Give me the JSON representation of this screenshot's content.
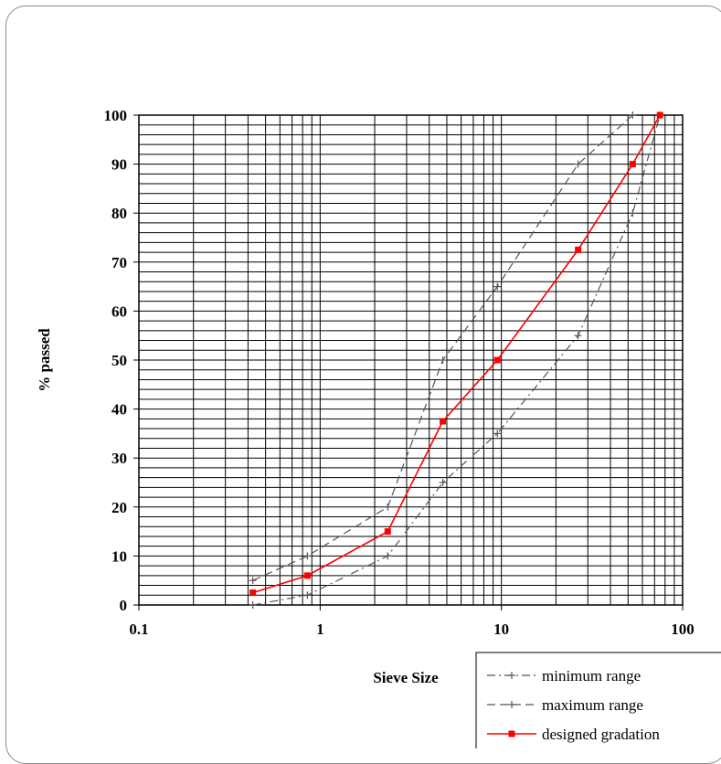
{
  "chart_data": {
    "type": "line",
    "title": "",
    "xlabel": "Sieve Size",
    "ylabel": "% passed",
    "x_scale": "log",
    "xlim": [
      0.1,
      100
    ],
    "ylim": [
      0,
      100
    ],
    "x_ticks": [
      "0.1",
      "1",
      "10",
      "100"
    ],
    "y_ticks": [
      "0",
      "10",
      "20",
      "30",
      "40",
      "50",
      "60",
      "70",
      "80",
      "90",
      "100"
    ],
    "grid": true,
    "legend_position": "bottom-right",
    "series": [
      {
        "name": "minimum range",
        "color": "#555555",
        "style": "dash-dot",
        "marker": "plus",
        "x": [
          0.425,
          0.85,
          2.36,
          4.75,
          9.5,
          26.5,
          53,
          75
        ],
        "y": [
          0,
          2,
          10,
          25,
          35,
          55,
          80,
          100
        ]
      },
      {
        "name": "maximum range",
        "color": "#555555",
        "style": "dashed",
        "marker": "plus",
        "x": [
          0.425,
          0.85,
          2.36,
          4.75,
          9.5,
          26.5,
          53
        ],
        "y": [
          5,
          10,
          20,
          50,
          65,
          90,
          100
        ]
      },
      {
        "name": "designed gradation",
        "color": "#ff0000",
        "style": "solid",
        "marker": "square",
        "x": [
          0.425,
          0.85,
          2.36,
          4.75,
          9.5,
          26.5,
          53,
          75
        ],
        "y": [
          2.5,
          6,
          15,
          37.5,
          50,
          72.5,
          90,
          100
        ]
      }
    ]
  }
}
